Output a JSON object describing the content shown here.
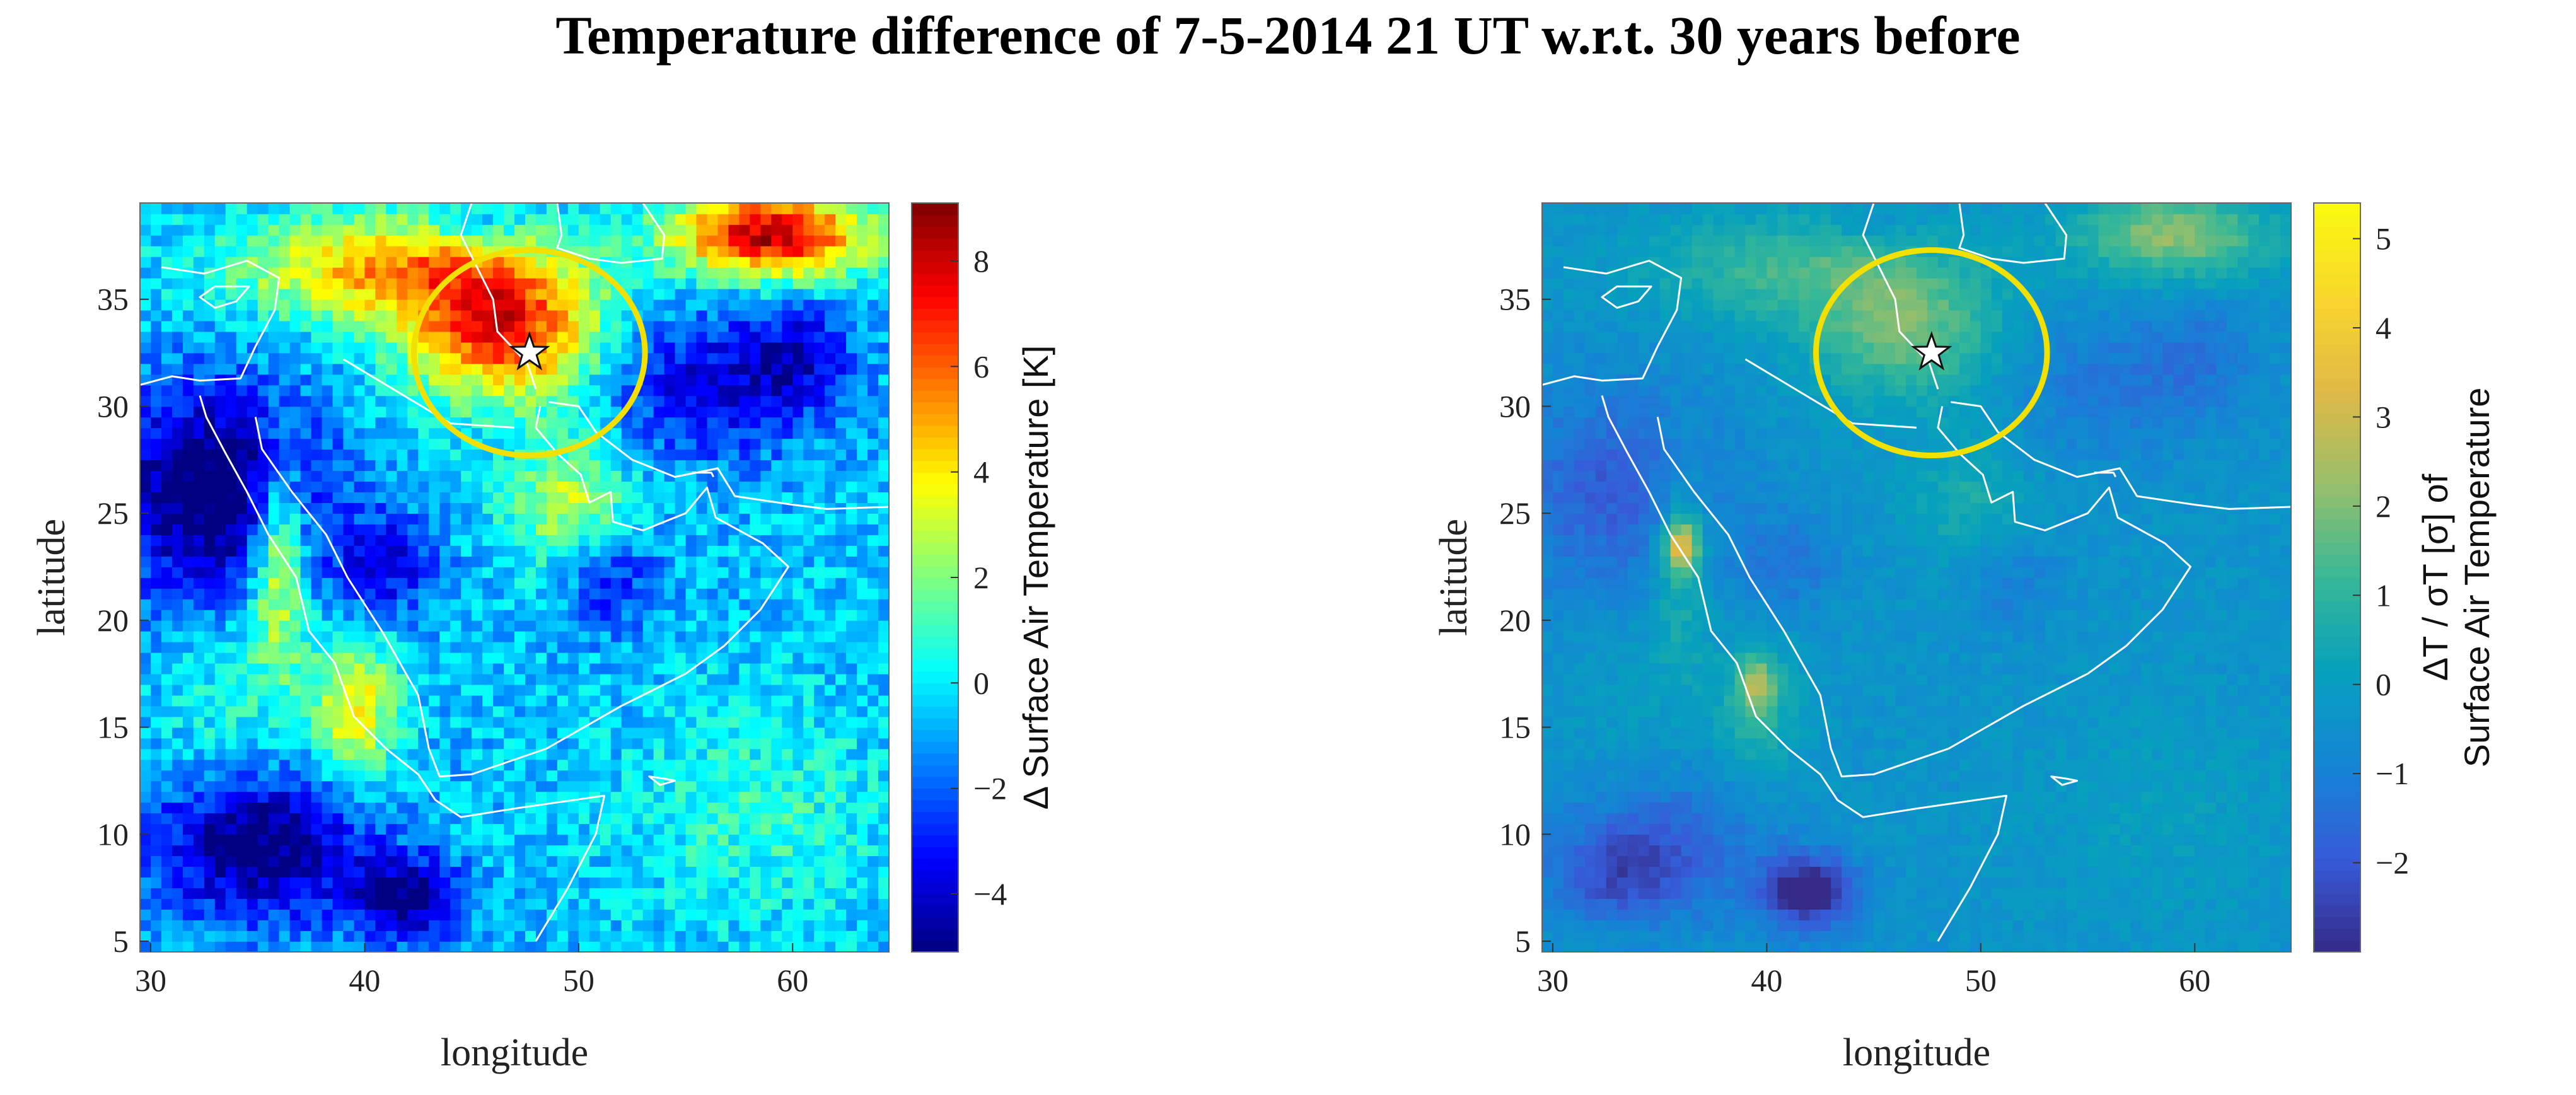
{
  "title": "Temperature difference of 7-5-2014 21 UT w.r.t. 30 years before",
  "chart_data": [
    {
      "type": "heatmap",
      "title": "",
      "xlabel": "longitude",
      "ylabel": "latitude",
      "xlim": [
        29.5,
        64.5
      ],
      "ylim": [
        4.5,
        39.5
      ],
      "xticks": [
        30,
        40,
        50,
        60
      ],
      "yticks": [
        5,
        10,
        15,
        20,
        25,
        30,
        35
      ],
      "colorbar": {
        "label": "Δ Surface Air Temperature [K]",
        "range": [
          -5.1,
          9.1
        ],
        "ticks": [
          -4,
          -2,
          0,
          2,
          4,
          6,
          8
        ],
        "colormap": "jet"
      },
      "marker": {
        "shape": "star",
        "lon": 47.7,
        "lat": 32.5
      },
      "circle": {
        "center_lon": 47.7,
        "center_lat": 32.5,
        "radius_lon": 5.4,
        "radius_lat": 4.8,
        "color": "#f2e000"
      },
      "grid": false,
      "field_description": "warm anomaly over Mesopotamia/Iran plateau and NE corner; cold anomaly over Africa west, Horn of Africa, Iran south; warm strip along Red Sea"
    },
    {
      "type": "heatmap",
      "title": "",
      "xlabel": "longitude",
      "ylabel": "latitude",
      "xlim": [
        29.5,
        64.5
      ],
      "ylim": [
        4.5,
        39.5
      ],
      "xticks": [
        30,
        40,
        50,
        60
      ],
      "yticks": [
        5,
        10,
        15,
        20,
        25,
        30,
        35
      ],
      "colorbar": {
        "label_line1": "ΔT / σT [σ] of",
        "label_line2": "Surface Air Temperature",
        "range": [
          -3.0,
          5.4
        ],
        "ticks": [
          -2,
          -1,
          0,
          1,
          2,
          3,
          4,
          5
        ],
        "colormap": "parula"
      },
      "marker": {
        "shape": "star",
        "lon": 47.7,
        "lat": 32.5
      },
      "circle": {
        "center_lon": 47.7,
        "center_lat": 32.5,
        "radius_lon": 5.4,
        "radius_lat": 4.8,
        "color": "#f2e000"
      },
      "grid": false
    }
  ]
}
